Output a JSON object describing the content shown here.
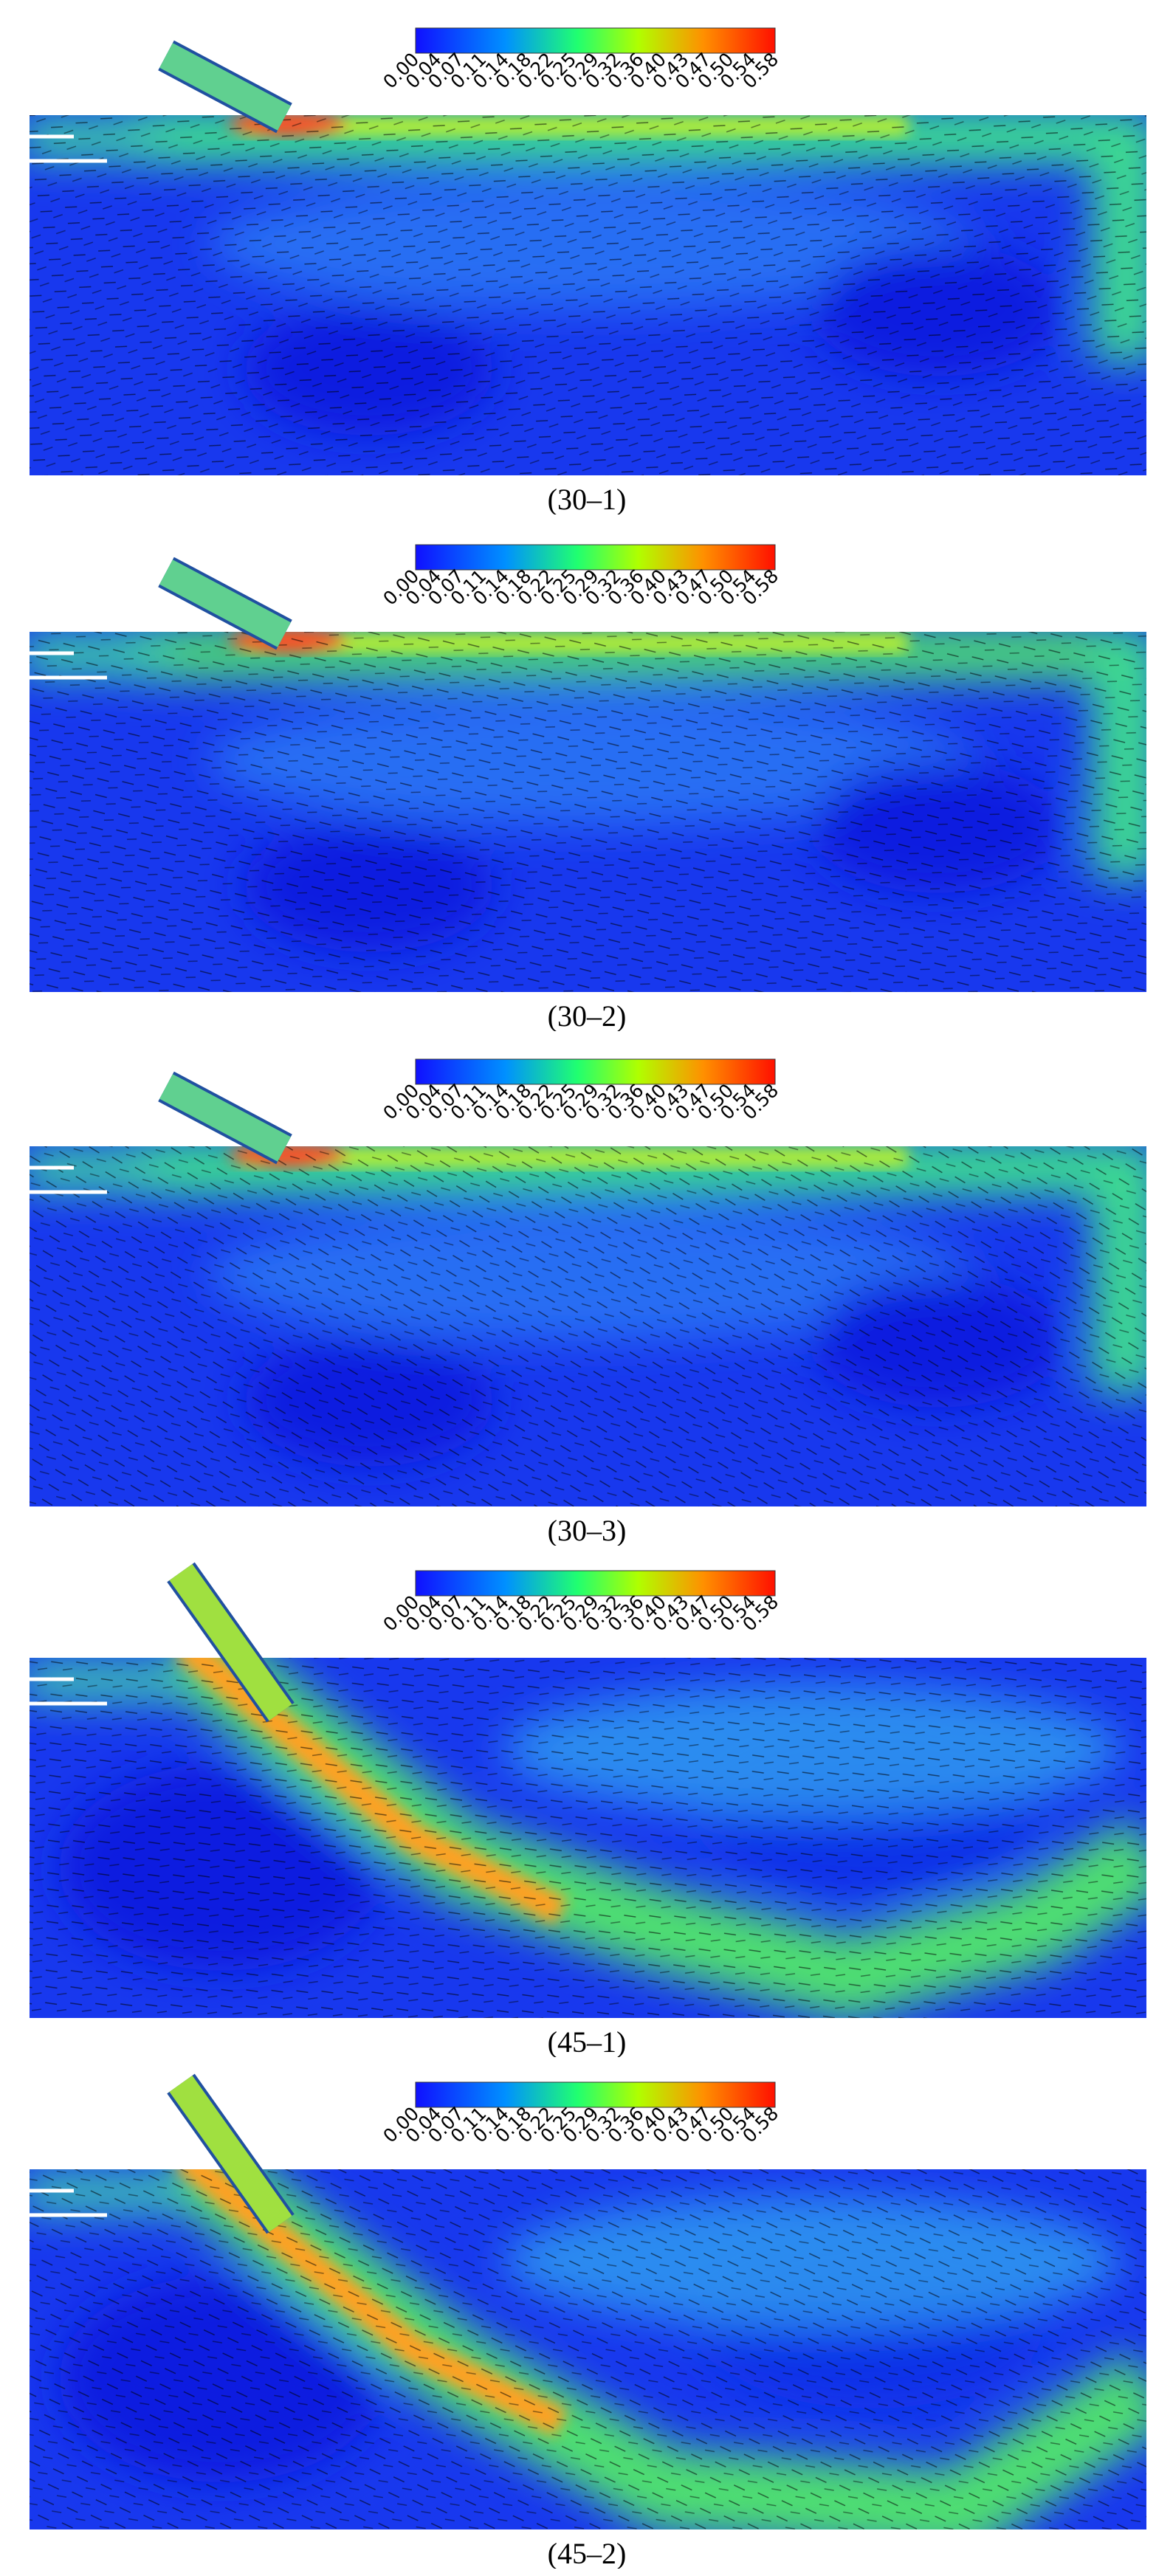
{
  "panels": [
    {
      "caption": "(30–1)",
      "colorbar_ticks": [
        "0.00",
        "0.04",
        "0.07",
        "0.11",
        "0.14",
        "0.18",
        "0.22",
        "0.25",
        "0.29",
        "0.32",
        "0.36",
        "0.40",
        "0.43",
        "0.47",
        "0.50",
        "0.54",
        "0.58"
      ]
    },
    {
      "caption": "(30–2)",
      "colorbar_ticks": [
        "0.00",
        "0.04",
        "0.07",
        "0.11",
        "0.14",
        "0.18",
        "0.22",
        "0.25",
        "0.29",
        "0.32",
        "0.36",
        "0.40",
        "0.43",
        "0.47",
        "0.50",
        "0.54",
        "0.58"
      ]
    },
    {
      "caption": "(30–3)",
      "colorbar_ticks": [
        "0.00",
        "0.04",
        "0.07",
        "0.11",
        "0.14",
        "0.18",
        "0.22",
        "0.25",
        "0.29",
        "0.32",
        "0.36",
        "0.40",
        "0.43",
        "0.47",
        "0.50",
        "0.54",
        "0.58"
      ]
    },
    {
      "caption": "(45–1)",
      "colorbar_ticks": [
        "0.00",
        "0.04",
        "0.07",
        "0.11",
        "0.14",
        "0.18",
        "0.22",
        "0.25",
        "0.29",
        "0.32",
        "0.36",
        "0.40",
        "0.43",
        "0.47",
        "0.50",
        "0.54",
        "0.58"
      ]
    },
    {
      "caption": "(45–2)",
      "colorbar_ticks": [
        "0.00",
        "0.04",
        "0.07",
        "0.11",
        "0.14",
        "0.18",
        "0.22",
        "0.25",
        "0.29",
        "0.32",
        "0.36",
        "0.40",
        "0.43",
        "0.47",
        "0.50",
        "0.54",
        "0.58"
      ]
    }
  ]
}
